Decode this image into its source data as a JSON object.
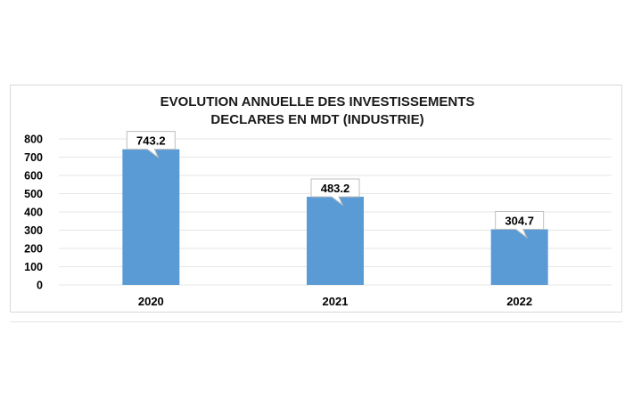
{
  "chart_data": {
    "type": "bar",
    "title": "EVOLUTION ANNUELLE DES INVESTISSEMENTS",
    "subtitle": "DECLARES EN MDT (INDUSTRIE)",
    "categories": [
      "2020",
      "2021",
      "2022"
    ],
    "values": [
      743.2,
      483.2,
      304.7
    ],
    "data_labels": [
      "743.2",
      "483.2",
      "304.7"
    ],
    "ylim": [
      0,
      800
    ],
    "yticks": [
      "0",
      "100",
      "200",
      "300",
      "400",
      "500",
      "600",
      "700",
      "800"
    ],
    "grid": true,
    "legend": "none",
    "bar_color": "#5b9bd5"
  }
}
